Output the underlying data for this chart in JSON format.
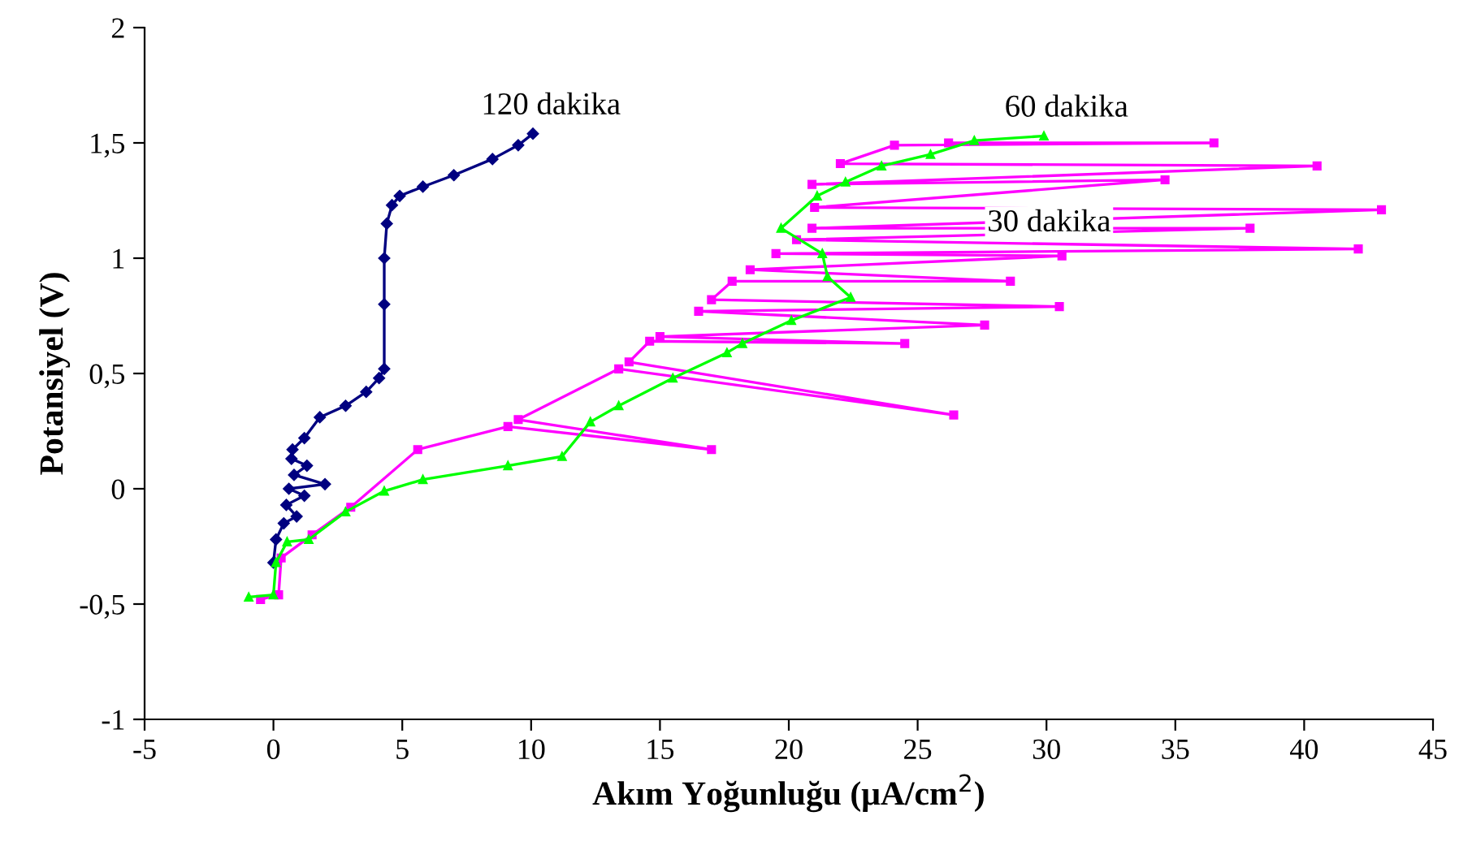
{
  "chart_data": {
    "type": "line",
    "xlabel": "Akım Yoğunluğu (μA/cm$^{2}$)",
    "ylabel": "Potansiyel (V)",
    "xlim": [
      -5,
      45
    ],
    "xticks": [
      -5,
      0,
      5,
      10,
      15,
      20,
      25,
      30,
      35,
      40,
      45
    ],
    "ylim": [
      -1,
      2
    ],
    "yticks": [
      {
        "value": -1,
        "label": "-1"
      },
      {
        "value": -0.5,
        "label": "-0,5"
      },
      0,
      {
        "value": 0.5,
        "label": "0,5"
      },
      1,
      {
        "value": 1.5,
        "label": "1,5"
      },
      2
    ],
    "grid": false,
    "legend": false,
    "series": [
      {
        "color": "#000080",
        "marker": "diamond",
        "x": [
          0,
          0.1,
          0.4,
          0.9,
          0.5,
          1.2,
          0.6,
          2.0,
          0.8,
          1.3,
          0.7,
          0.74,
          1.2,
          1.8,
          2.8,
          3.6,
          4.1,
          4.3,
          4.3,
          4.3,
          4.4,
          4.6,
          4.9,
          5.8,
          7.0,
          8.5,
          9.5,
          10.07
        ],
        "values": [
          -0.32,
          -0.22,
          -0.15,
          -0.12,
          -0.07,
          -0.03,
          0.0,
          0.02,
          0.06,
          0.1,
          0.13,
          0.17,
          0.22,
          0.31,
          0.36,
          0.42,
          0.48,
          0.52,
          0.8,
          1.0,
          1.15,
          1.23,
          1.27,
          1.31,
          1.36,
          1.43,
          1.49,
          1.54
        ]
      },
      {
        "color": "#ff00ff",
        "marker": "square",
        "x": [
          -0.5,
          0.2,
          0.3,
          1.5,
          3.0,
          5.6,
          9.1,
          17.0,
          9.5,
          13.4,
          26.4,
          13.8,
          14.6,
          24.5,
          15.0,
          27.6,
          16.5,
          30.5,
          17.0,
          17.8,
          28.6,
          18.5,
          30.6,
          19.5,
          42.1,
          20.3,
          37.9,
          20.9,
          43.0,
          21.0,
          34.6,
          20.9,
          40.5,
          22.0,
          24.1,
          36.5,
          26.2
        ],
        "values": [
          -0.48,
          -0.46,
          -0.3,
          -0.2,
          -0.08,
          0.17,
          0.27,
          0.17,
          0.3,
          0.52,
          0.32,
          0.55,
          0.64,
          0.63,
          0.66,
          0.71,
          0.77,
          0.79,
          0.82,
          0.9,
          0.9,
          0.95,
          1.01,
          1.02,
          1.04,
          1.08,
          1.13,
          1.13,
          1.21,
          1.22,
          1.34,
          1.32,
          1.4,
          1.41,
          1.49,
          1.5,
          1.5
        ]
      },
      {
        "color": "#00ff00",
        "marker": "triangle",
        "x": [
          -0.96,
          0,
          0.1,
          0.53,
          1.37,
          2.8,
          4.3,
          5.8,
          9.1,
          11.2,
          12.3,
          13.4,
          15.5,
          17.6,
          18.2,
          20.1,
          22.4,
          21.5,
          21.3,
          19.7,
          21.1,
          22.2,
          23.6,
          25.5,
          27.2,
          29.9
        ],
        "values": [
          -0.47,
          -0.46,
          -0.32,
          -0.23,
          -0.22,
          -0.1,
          -0.01,
          0.04,
          0.1,
          0.14,
          0.29,
          0.36,
          0.48,
          0.59,
          0.63,
          0.73,
          0.83,
          0.92,
          1.02,
          1.13,
          1.27,
          1.33,
          1.4,
          1.45,
          1.51,
          1.53
        ]
      }
    ],
    "annotations": [
      {
        "text": "120 dakika",
        "x": 10.07,
        "y": 1.54
      },
      {
        "text": "60 dakika",
        "x": 29.9,
        "y": 1.53
      },
      {
        "text": "30 dakika",
        "x": 30.1,
        "y": 1.15
      }
    ]
  }
}
